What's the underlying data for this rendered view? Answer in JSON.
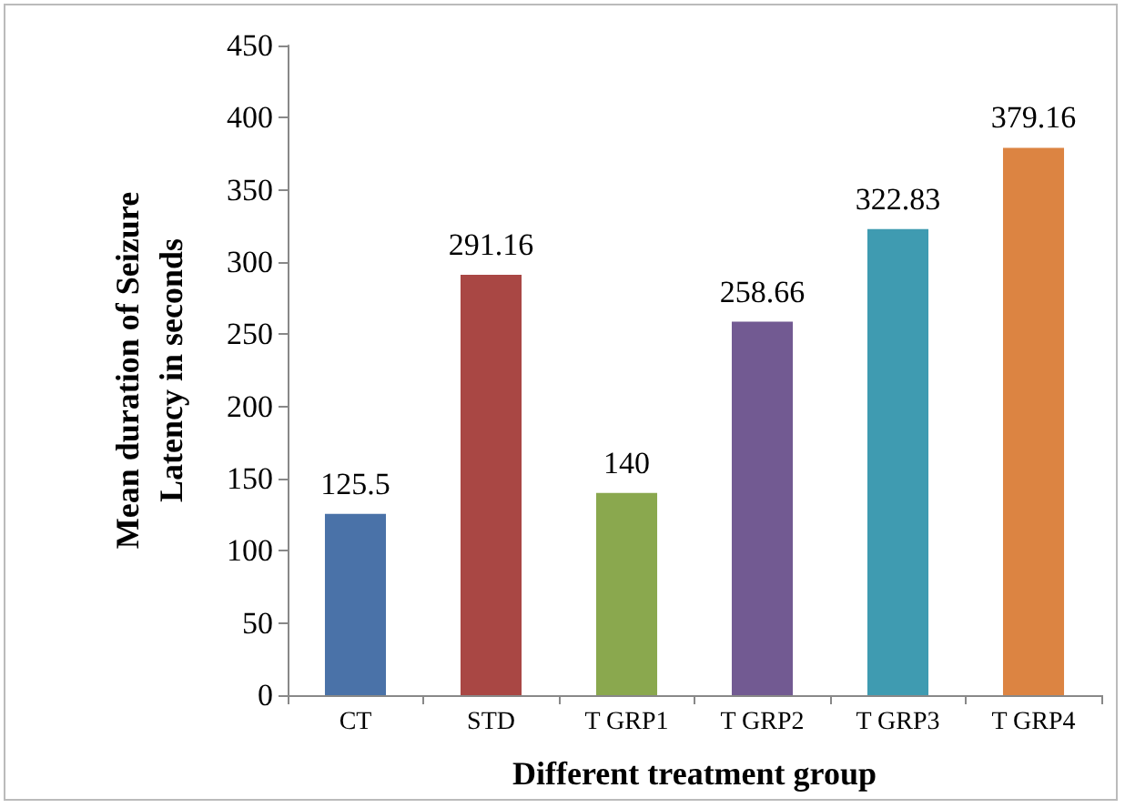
{
  "chart_data": {
    "type": "bar",
    "xlabel": "Different treatment group",
    "ylabel": "Mean duration of Seizure\nLatency in seconds",
    "categories": [
      "CT",
      "STD",
      "T GRP1",
      "T GRP2",
      "T GRP3",
      "T GRP4"
    ],
    "values": [
      125.5,
      291.16,
      140,
      258.66,
      322.83,
      379.16
    ],
    "colors": [
      "#4a72a8",
      "#a94744",
      "#8aa84e",
      "#725a92",
      "#3f9bb1",
      "#dc8442"
    ],
    "ylim": [
      0,
      450
    ],
    "yticks": [
      0,
      50,
      100,
      150,
      200,
      250,
      300,
      350,
      400,
      450
    ],
    "data_labels": true
  }
}
